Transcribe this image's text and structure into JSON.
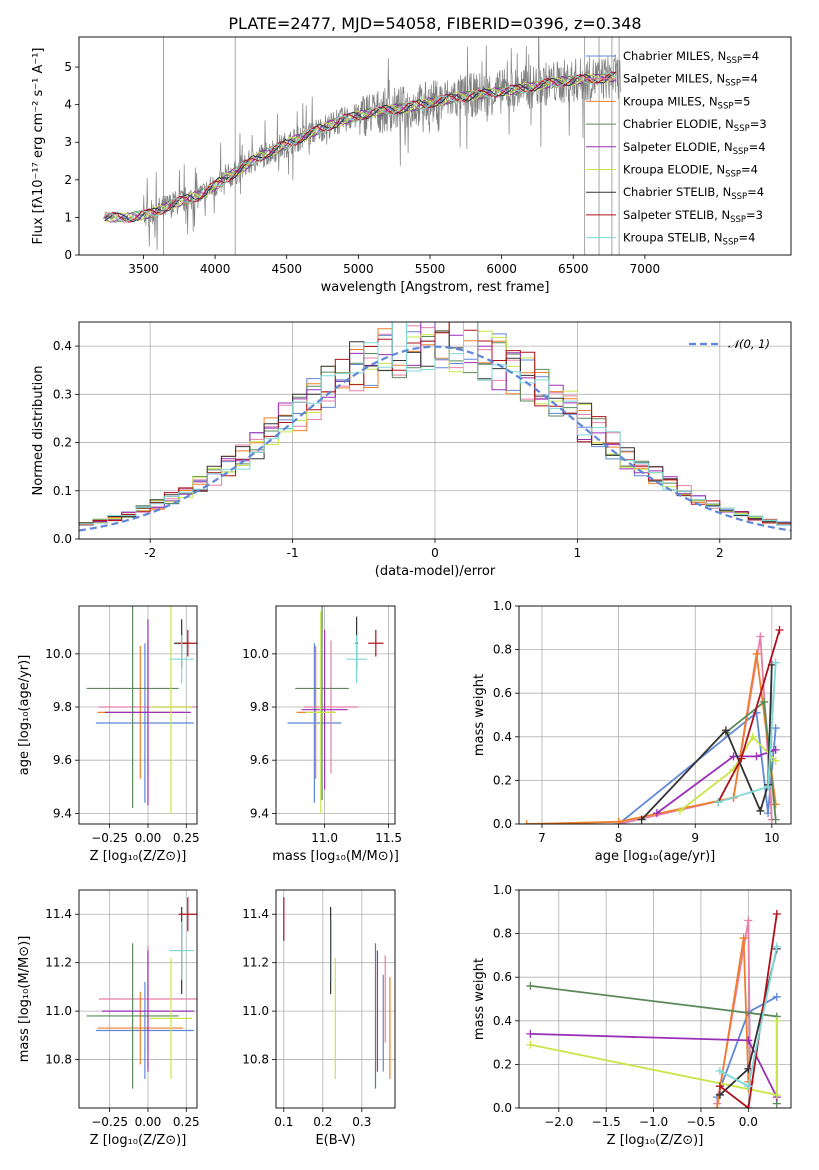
{
  "figure": {
    "title": "PLATE=2477, MJD=54058, FIBERID=0396, z=0.348"
  },
  "chart_data": [
    {
      "id": "spectrum",
      "type": "line",
      "xlabel": "wavelength [Angstrom, rest frame]",
      "ylabel": "Flux [fλ10⁻¹⁷ erg cm⁻² s⁻¹ A⁻¹]",
      "xlim": [
        3050,
        8020
      ],
      "ylim": [
        0,
        5.8
      ],
      "xticks": [
        3500,
        4000,
        4500,
        5000,
        5500,
        6000,
        6500,
        7000
      ],
      "yticks": [
        0,
        1,
        2,
        3,
        4,
        5
      ],
      "grid": false,
      "legend_position": "top-right",
      "data_trend": {
        "x": [
          3220,
          3400,
          3550,
          3700,
          3900,
          4100,
          4300,
          4500,
          4700,
          4900,
          5100,
          5300,
          5500,
          5700,
          5900,
          6100,
          6300,
          6500,
          6700,
          6800
        ],
        "y": [
          1.0,
          1.0,
          1.1,
          1.35,
          1.6,
          2.1,
          2.6,
          2.95,
          3.3,
          3.6,
          3.8,
          3.9,
          4.05,
          4.2,
          4.3,
          4.4,
          4.55,
          4.65,
          4.7,
          4.75
        ]
      },
      "series": [
        {
          "name": "Chabrier MILES, N_SSP=4",
          "color": "#5f87d8"
        },
        {
          "name": "Salpeter MILES, N_SSP=4",
          "color": "#e87eaa"
        },
        {
          "name": "Kroupa MILES, N_SSP=5",
          "color": "#f07f2a"
        },
        {
          "name": "Chabrier ELODIE, N_SSP=3",
          "color": "#5b8a5a"
        },
        {
          "name": "Salpeter ELODIE, N_SSP=4",
          "color": "#9a2fb8"
        },
        {
          "name": "Kroupa ELODIE, N_SSP=4",
          "color": "#c9e54a"
        },
        {
          "name": "Chabrier STELIB, N_SSP=4",
          "color": "#333333"
        },
        {
          "name": "Salpeter STELIB, N_SSP=3",
          "color": "#b0101a"
        },
        {
          "name": "Kroupa STELIB, N_SSP=4",
          "color": "#7dd8d8"
        }
      ],
      "data_color": "#808080"
    },
    {
      "id": "residuals",
      "type": "line",
      "xlabel": "(data-model)/error",
      "ylabel": "Normed distribution",
      "xlim": [
        -2.5,
        2.5
      ],
      "ylim": [
        0,
        0.45
      ],
      "xticks": [
        -2,
        -1,
        0,
        1,
        2
      ],
      "yticks": [
        0.0,
        0.1,
        0.2,
        0.3,
        0.4
      ],
      "grid": true,
      "legend": "𝒩(0, 1)",
      "legend_position": "top-right",
      "gaussian": {
        "mean": 0,
        "sigma": 1,
        "color": "#5f87d8"
      },
      "histogram_hint": "step histograms for each of the 9 models approximating the normal distribution"
    },
    {
      "id": "age_vs_Z",
      "type": "scatter",
      "xlabel": "Z [log₁₀(Z/Z⊙)]",
      "ylabel": "age  [log₁₀(age/yr)]",
      "xlim": [
        -0.45,
        0.32
      ],
      "ylim": [
        9.36,
        10.18
      ],
      "xticks": [
        -0.25,
        0.0,
        0.25
      ],
      "xticklabels": [
        "−0.25",
        "0.00",
        "0.25"
      ],
      "yticks": [
        9.4,
        9.6,
        9.8,
        10.0
      ],
      "grid": true,
      "points": [
        {
          "x": -0.02,
          "y": 9.74,
          "xerr": 0.32,
          "yerr": 0.3,
          "color": "#5f87d8"
        },
        {
          "x": 0.0,
          "y": 9.8,
          "xerr": 0.32,
          "yerr": 0.25,
          "color": "#e87eaa"
        },
        {
          "x": -0.05,
          "y": 9.78,
          "xerr": 0.28,
          "yerr": 0.25,
          "color": "#f07f2a"
        },
        {
          "x": -0.1,
          "y": 9.87,
          "xerr": 0.3,
          "yerr": 0.45,
          "color": "#5b8a5a"
        },
        {
          "x": 0.0,
          "y": 9.78,
          "xerr": 0.28,
          "yerr": 0.35,
          "color": "#9a2fb8"
        },
        {
          "x": 0.15,
          "y": 9.8,
          "xerr": 0.14,
          "yerr": 0.4,
          "color": "#c9e54a"
        },
        {
          "x": 0.22,
          "y": 10.04,
          "xerr": 0.05,
          "yerr": 0.09,
          "color": "#333333"
        },
        {
          "x": 0.26,
          "y": 10.04,
          "xerr": 0.06,
          "yerr": 0.05,
          "color": "#b0101a"
        },
        {
          "x": 0.22,
          "y": 9.98,
          "xerr": 0.08,
          "yerr": 0.09,
          "color": "#7dd8d8"
        }
      ]
    },
    {
      "id": "age_vs_mass",
      "type": "scatter",
      "xlabel": "mass [log₁₀(M/M⊙)]",
      "ylabel": "",
      "xlim": [
        10.62,
        11.55
      ],
      "ylim": [
        9.36,
        10.18
      ],
      "xticks": [
        11.0,
        11.5
      ],
      "yticks": [
        9.4,
        9.6,
        9.8,
        10.0
      ],
      "grid": true,
      "points": [
        {
          "x": 10.92,
          "y": 9.74,
          "xerr": 0.21,
          "yerr": 0.3,
          "color": "#5f87d8"
        },
        {
          "x": 11.05,
          "y": 9.8,
          "xerr": 0.21,
          "yerr": 0.25,
          "color": "#e87eaa"
        },
        {
          "x": 10.93,
          "y": 9.78,
          "xerr": 0.15,
          "yerr": 0.25,
          "color": "#f07f2a"
        },
        {
          "x": 10.98,
          "y": 9.87,
          "xerr": 0.21,
          "yerr": 0.42,
          "color": "#5b8a5a"
        },
        {
          "x": 11.0,
          "y": 9.79,
          "xerr": 0.18,
          "yerr": 0.3,
          "color": "#9a2fb8"
        },
        {
          "x": 10.97,
          "y": 9.78,
          "xerr": 0.12,
          "yerr": 0.38,
          "color": "#c9e54a"
        },
        {
          "x": 11.25,
          "y": 10.04,
          "xerr": 0.01,
          "yerr": 0.1,
          "color": "#333333"
        },
        {
          "x": 11.4,
          "y": 10.04,
          "xerr": 0.06,
          "yerr": 0.05,
          "color": "#b0101a"
        },
        {
          "x": 11.25,
          "y": 9.98,
          "xerr": 0.08,
          "yerr": 0.09,
          "color": "#7dd8d8"
        }
      ]
    },
    {
      "id": "mass_weight_vs_age",
      "type": "line",
      "xlabel": "age  [log₁₀(age/yr)]",
      "ylabel": "mass weight",
      "xlim": [
        6.7,
        10.25
      ],
      "ylim": [
        0,
        1.0
      ],
      "xticks": [
        7,
        8,
        9,
        10
      ],
      "yticks": [
        0.0,
        0.2,
        0.4,
        0.6,
        0.8,
        1.0
      ],
      "grid": true,
      "series": [
        {
          "color": "#5f87d8",
          "x": [
            8.0,
            9.8,
            9.95,
            10.05
          ],
          "y": [
            0.0,
            0.51,
            0.05,
            0.44
          ]
        },
        {
          "color": "#e87eaa",
          "x": [
            8.0,
            9.5,
            9.85,
            10.0
          ],
          "y": [
            0.0,
            0.12,
            0.86,
            0.02
          ]
        },
        {
          "color": "#f07f2a",
          "x": [
            6.8,
            8.0,
            9.5,
            9.8,
            10.05
          ],
          "y": [
            0.0,
            0.01,
            0.12,
            0.78,
            0.09
          ]
        },
        {
          "color": "#5b8a5a",
          "x": [
            9.4,
            9.9,
            10.05
          ],
          "y": [
            0.42,
            0.56,
            0.02
          ]
        },
        {
          "color": "#9a2fb8",
          "x": [
            8.5,
            9.5,
            9.8,
            10.05
          ],
          "y": [
            0.05,
            0.31,
            0.31,
            0.34
          ]
        },
        {
          "color": "#c9e54a",
          "x": [
            8.8,
            9.5,
            9.75,
            10.05
          ],
          "y": [
            0.06,
            0.25,
            0.4,
            0.29
          ]
        },
        {
          "color": "#333333",
          "x": [
            8.3,
            9.4,
            9.85,
            9.95,
            10.0
          ],
          "y": [
            0.02,
            0.43,
            0.06,
            0.18,
            0.73
          ]
        },
        {
          "color": "#b0101a",
          "x": [
            9.3,
            9.6,
            10.1
          ],
          "y": [
            0.1,
            0.3,
            0.89
          ]
        },
        {
          "color": "#7dd8d8",
          "x": [
            9.3,
            9.95,
            10.05
          ],
          "y": [
            0.1,
            0.17,
            0.74
          ]
        }
      ]
    },
    {
      "id": "mass_vs_Z",
      "type": "scatter",
      "xlabel": "Z [log₁₀(Z/Z⊙)]",
      "ylabel": "mass [log₁₀(M/M⊙)]",
      "xlim": [
        -0.45,
        0.32
      ],
      "ylim": [
        10.6,
        11.5
      ],
      "xticks": [
        -0.25,
        0.0,
        0.25
      ],
      "xticklabels": [
        "−0.25",
        "0.00",
        "0.25"
      ],
      "yticks": [
        10.8,
        11.0,
        11.2,
        11.4
      ],
      "grid": true,
      "points": [
        {
          "x": -0.02,
          "y": 10.92,
          "xerr": 0.32,
          "yerr": 0.2,
          "color": "#5f87d8"
        },
        {
          "x": 0.0,
          "y": 11.05,
          "xerr": 0.32,
          "yerr": 0.22,
          "color": "#e87eaa"
        },
        {
          "x": -0.05,
          "y": 10.93,
          "xerr": 0.28,
          "yerr": 0.15,
          "color": "#f07f2a"
        },
        {
          "x": -0.1,
          "y": 10.98,
          "xerr": 0.3,
          "yerr": 0.3,
          "color": "#5b8a5a"
        },
        {
          "x": 0.0,
          "y": 11.0,
          "xerr": 0.3,
          "yerr": 0.25,
          "color": "#9a2fb8"
        },
        {
          "x": 0.15,
          "y": 10.97,
          "xerr": 0.14,
          "yerr": 0.25,
          "color": "#c9e54a"
        },
        {
          "x": 0.22,
          "y": 11.25,
          "xerr": 0.01,
          "yerr": 0.18,
          "color": "#333333"
        },
        {
          "x": 0.26,
          "y": 11.4,
          "xerr": 0.06,
          "yerr": 0.07,
          "color": "#b0101a"
        },
        {
          "x": 0.22,
          "y": 11.25,
          "xerr": 0.08,
          "yerr": 0.12,
          "color": "#7dd8d8"
        }
      ]
    },
    {
      "id": "mass_vs_EBV",
      "type": "scatter",
      "xlabel": "E(B-V)",
      "ylabel": "",
      "xlim": [
        0.08,
        0.385
      ],
      "ylim": [
        10.6,
        11.5
      ],
      "xticks": [
        0.1,
        0.2,
        0.3
      ],
      "yticks": [
        10.8,
        11.0,
        11.2,
        11.4
      ],
      "grid": true,
      "points": [
        {
          "x": 0.355,
          "y": 10.95,
          "yerr": 0.2,
          "color": "#5f87d8"
        },
        {
          "x": 0.36,
          "y": 11.05,
          "yerr": 0.18,
          "color": "#e87eaa"
        },
        {
          "x": 0.372,
          "y": 10.93,
          "yerr": 0.21,
          "color": "#f07f2a"
        },
        {
          "x": 0.335,
          "y": 10.98,
          "yerr": 0.3,
          "color": "#5b8a5a"
        },
        {
          "x": 0.34,
          "y": 11.0,
          "yerr": 0.25,
          "color": "#9a2fb8"
        },
        {
          "x": 0.232,
          "y": 10.97,
          "yerr": 0.25,
          "color": "#c9e54a"
        },
        {
          "x": 0.22,
          "y": 11.25,
          "yerr": 0.18,
          "color": "#333333"
        },
        {
          "x": 0.1,
          "y": 11.38,
          "yerr": 0.09,
          "color": "#b0101a"
        },
        {
          "x": 0.222,
          "y": 11.25,
          "yerr": 0.13,
          "color": "#7dd8d8"
        }
      ]
    },
    {
      "id": "mass_weight_vs_Z",
      "type": "line",
      "xlabel": "Z [log₁₀(Z/Z⊙)]",
      "ylabel": "mass weight",
      "xlim": [
        -2.42,
        0.45
      ],
      "ylim": [
        0,
        1.0
      ],
      "xticks": [
        -2.0,
        -1.5,
        -1.0,
        -0.5,
        0.0
      ],
      "xticklabels": [
        "−2.0",
        "−1.5",
        "−1.0",
        "−0.5",
        "0.0"
      ],
      "yticks": [
        0.0,
        0.2,
        0.4,
        0.6,
        0.8,
        1.0
      ],
      "grid": true,
      "series": [
        {
          "color": "#5f87d8",
          "x": [
            -0.33,
            0.0,
            0.3
          ],
          "y": [
            0.05,
            0.44,
            0.51
          ]
        },
        {
          "color": "#e87eaa",
          "x": [
            -0.33,
            0.0,
            0.02
          ],
          "y": [
            0.02,
            0.86,
            0.12
          ]
        },
        {
          "color": "#f07f2a",
          "x": [
            -0.33,
            -0.05,
            0.0,
            0.0
          ],
          "y": [
            0.0,
            0.78,
            0.12,
            0.09
          ]
        },
        {
          "color": "#5b8a5a",
          "x": [
            -2.3,
            0.3,
            0.3
          ],
          "y": [
            0.56,
            0.42,
            0.02
          ]
        },
        {
          "color": "#9a2fb8",
          "x": [
            -2.3,
            0.0,
            0.3
          ],
          "y": [
            0.34,
            0.31,
            0.05
          ]
        },
        {
          "color": "#c9e54a",
          "x": [
            -2.3,
            0.3,
            0.3
          ],
          "y": [
            0.29,
            0.06,
            0.4
          ]
        },
        {
          "color": "#333333",
          "x": [
            -0.3,
            0.0,
            0.3
          ],
          "y": [
            0.06,
            0.18,
            0.73
          ]
        },
        {
          "color": "#b0101a",
          "x": [
            -0.3,
            0.0,
            0.3
          ],
          "y": [
            0.1,
            0.0,
            0.89
          ]
        },
        {
          "color": "#7dd8d8",
          "x": [
            -0.3,
            0.0,
            0.3
          ],
          "y": [
            0.17,
            0.1,
            0.74
          ]
        }
      ]
    }
  ]
}
